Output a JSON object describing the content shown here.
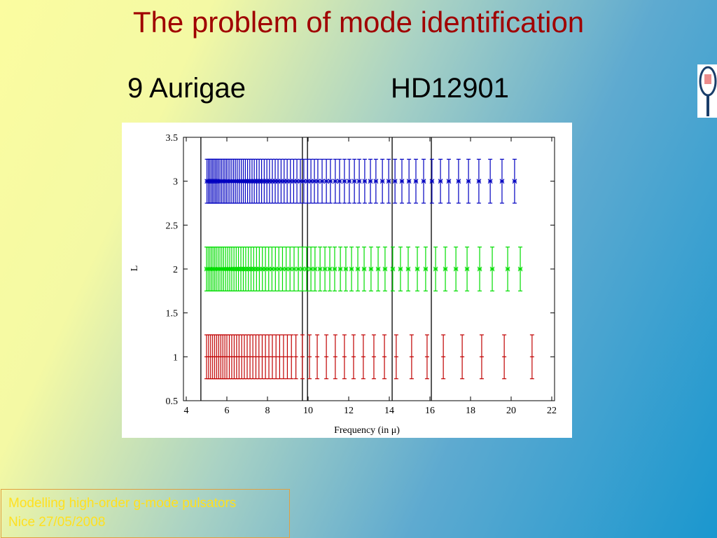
{
  "slide": {
    "title": "The problem of mode identification",
    "star_left": "9 Aurigae",
    "star_right": "HD12901",
    "footer_line1": "Modelling high-order g-mode pulsators",
    "footer_line2": "Nice 27/05/2008"
  },
  "chart_data": {
    "type": "errorbar",
    "x_label": "Frequency (in μ)",
    "y_label": "L",
    "xlim": [
      4,
      22
    ],
    "ylim": [
      0.5,
      3.5
    ],
    "xticks": [
      4,
      6,
      8,
      10,
      12,
      14,
      16,
      18,
      20,
      22
    ],
    "yticks": [
      0.5,
      1,
      1.5,
      2,
      2.5,
      3,
      3.5
    ],
    "observed_frequencies": [
      4.72,
      9.72,
      9.97,
      14.14,
      16.07
    ],
    "series": [
      {
        "color": "#c00000",
        "marker": "tick",
        "y": 1,
        "error": 0.25,
        "x": [
          5.0,
          5.1,
          5.2,
          5.3,
          5.4,
          5.5,
          5.6,
          5.7,
          5.8,
          5.9,
          6.0,
          6.12,
          6.24,
          6.36,
          6.48,
          6.6,
          6.73,
          6.86,
          7.0,
          7.14,
          7.28,
          7.43,
          7.58,
          7.74,
          7.9,
          8.07,
          8.24,
          8.42,
          8.6,
          8.79,
          8.98,
          9.18,
          9.4,
          9.72,
          10.07,
          10.45,
          10.9,
          11.34,
          11.79,
          12.24,
          12.72,
          13.24,
          13.76,
          14.34,
          15.1,
          15.86,
          16.66,
          17.59,
          18.55,
          19.66,
          21.03
        ]
      },
      {
        "color": "#00dd00",
        "marker": "star",
        "y": 2,
        "error": 0.25,
        "x": [
          5.0,
          5.08,
          5.16,
          5.24,
          5.32,
          5.4,
          5.48,
          5.57,
          5.66,
          5.75,
          5.84,
          5.94,
          6.04,
          6.14,
          6.24,
          6.35,
          6.46,
          6.57,
          6.69,
          6.81,
          6.93,
          7.06,
          7.19,
          7.32,
          7.46,
          7.6,
          7.75,
          7.9,
          8.06,
          8.22,
          8.39,
          8.56,
          8.74,
          8.92,
          9.11,
          9.31,
          9.52,
          9.72,
          9.93,
          10.14,
          10.34,
          10.59,
          10.83,
          11.07,
          11.31,
          11.59,
          11.86,
          12.14,
          12.45,
          12.76,
          13.1,
          13.45,
          13.79,
          14.17,
          14.55,
          14.93,
          15.38,
          15.79,
          16.28,
          16.76,
          17.28,
          17.83,
          18.45,
          19.07,
          19.83,
          20.45
        ]
      },
      {
        "color": "#0000c0",
        "marker": "star",
        "y": 3,
        "error": 0.25,
        "x": [
          5.02,
          5.09,
          5.16,
          5.23,
          5.3,
          5.37,
          5.44,
          5.51,
          5.58,
          5.66,
          5.74,
          5.82,
          5.9,
          5.98,
          6.06,
          6.15,
          6.24,
          6.33,
          6.42,
          6.51,
          6.61,
          6.71,
          6.81,
          6.91,
          7.02,
          7.13,
          7.24,
          7.35,
          7.47,
          7.59,
          7.71,
          7.84,
          7.97,
          8.1,
          8.24,
          8.38,
          8.52,
          8.67,
          8.82,
          8.97,
          9.13,
          9.29,
          9.45,
          9.62,
          9.79,
          9.97,
          10.14,
          10.31,
          10.48,
          10.69,
          10.9,
          11.1,
          11.34,
          11.55,
          11.79,
          12.03,
          12.28,
          12.52,
          12.79,
          13.07,
          13.34,
          13.66,
          13.97,
          14.28,
          14.62,
          14.97,
          15.31,
          15.69,
          16.1,
          16.52,
          16.93,
          17.41,
          17.9,
          18.41,
          18.97,
          19.55,
          20.17
        ]
      }
    ]
  }
}
